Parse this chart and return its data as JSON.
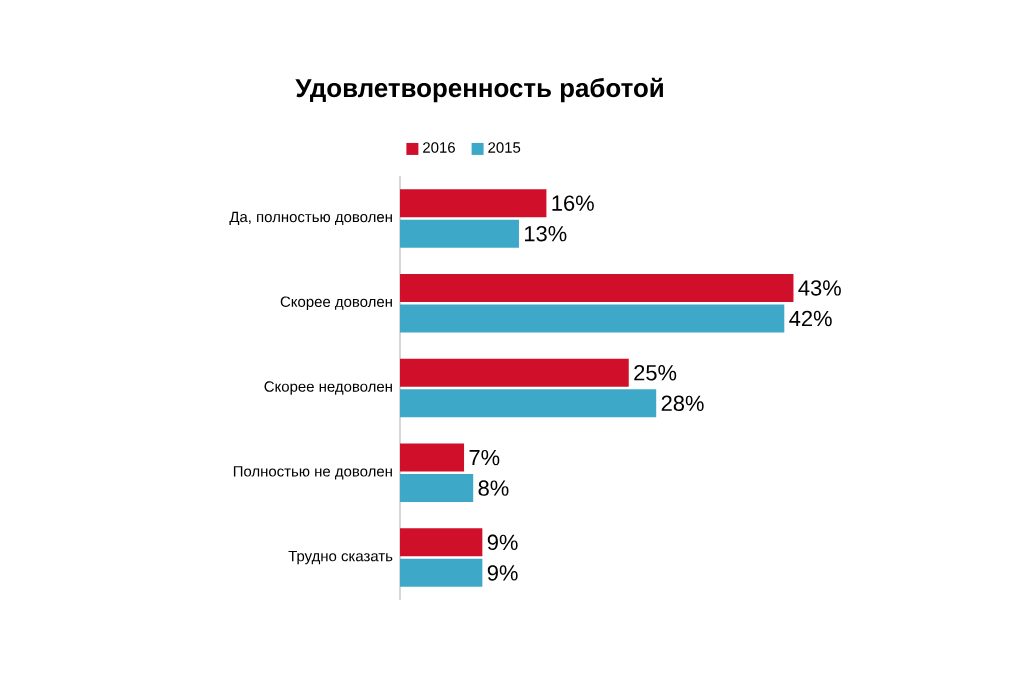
{
  "chart_data": {
    "type": "bar",
    "orientation": "horizontal",
    "title": "Удовлетворенность работой",
    "categories": [
      "Да, полностью доволен",
      "Скорее доволен",
      "Скорее недоволен",
      "Полностью не доволен",
      "Трудно сказать"
    ],
    "series": [
      {
        "name": "2016",
        "color": "#d0102b",
        "values": [
          16,
          43,
          25,
          7,
          9
        ],
        "value_labels": [
          "16%",
          "43%",
          "25%",
          "7%",
          "9%"
        ]
      },
      {
        "name": "2015",
        "color": "#3ea8c8",
        "values": [
          13,
          42,
          28,
          8,
          9
        ],
        "value_labels": [
          "13%",
          "42%",
          "28%",
          "8%",
          "9%"
        ]
      }
    ],
    "legend": "top"
  }
}
